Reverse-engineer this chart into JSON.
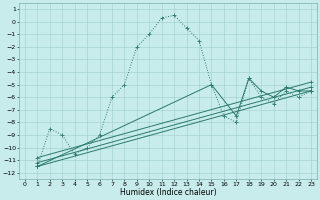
{
  "xlabel": "Humidex (Indice chaleur)",
  "bg_color": "#c8ecec",
  "grid_color": "#9fcfcf",
  "line_color": "#2a7a6a",
  "xlim": [
    -0.5,
    23.5
  ],
  "ylim": [
    -12.5,
    1.5
  ],
  "main_x": [
    1,
    2,
    3,
    4,
    5,
    6,
    7,
    8,
    9,
    10,
    11,
    12,
    13,
    14,
    15,
    16,
    17,
    18,
    19,
    20,
    21,
    22,
    23
  ],
  "main_y": [
    -11.5,
    -8.5,
    -9.0,
    -10.5,
    -10.0,
    -9.0,
    -6.0,
    -5.0,
    -2.0,
    -1.0,
    0.3,
    0.5,
    -0.5,
    -1.5,
    -5.0,
    -7.5,
    -8.0,
    -4.5,
    -6.0,
    -6.5,
    -5.5,
    -6.0,
    -5.5
  ],
  "line1_x": [
    1,
    23
  ],
  "line1_y": [
    -11.5,
    -5.5
  ],
  "line2_x": [
    1,
    23
  ],
  "line2_y": [
    -11.2,
    -5.2
  ],
  "line3_x": [
    1,
    23
  ],
  "line3_y": [
    -10.8,
    -4.8
  ],
  "line4_x": [
    1,
    15,
    17,
    18,
    19,
    20,
    21,
    22,
    23
  ],
  "line4_y": [
    -11.5,
    -5.0,
    -7.5,
    -4.5,
    -5.5,
    -6.0,
    -5.2,
    -5.5,
    -5.5
  ]
}
